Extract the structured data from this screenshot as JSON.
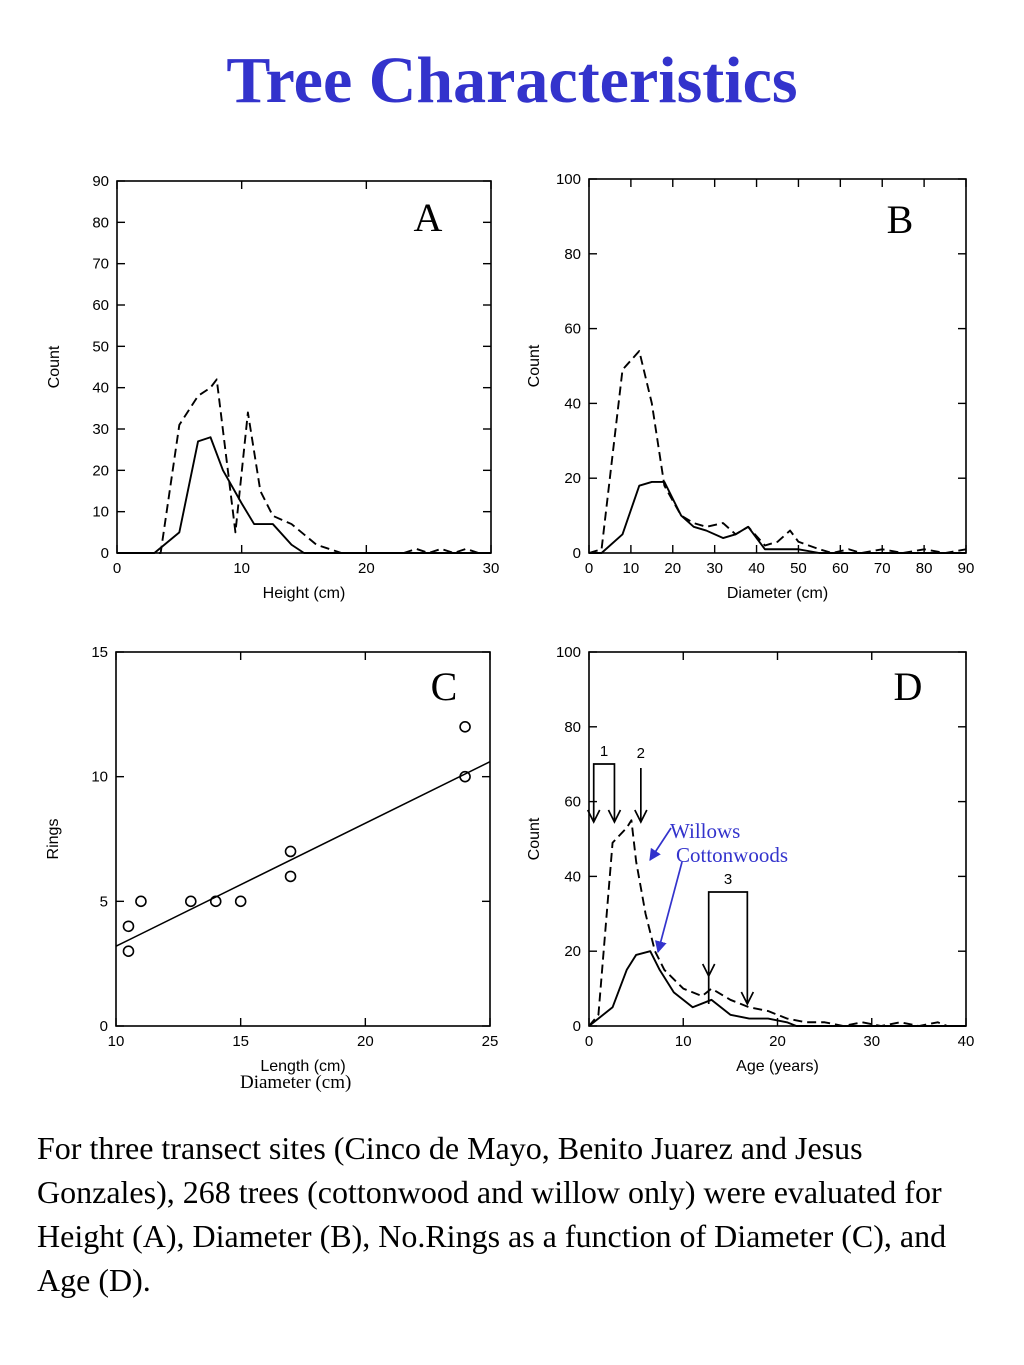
{
  "title": "Tree Characteristics",
  "caption": "For three transect sites (Cinco de Mayo, Benito Juarez and Jesus Gonzales), 268 trees (cottonwood and willow only) were evaluated for Height (A), Diameter (B), No.Rings as a function of Diameter (C), and Age (D).",
  "overlay_diameter_label": "Diameter (cm)",
  "legend_willows": "Willows",
  "legend_cottonwoods": "Cottonwoods",
  "colors": {
    "title": "#3333cc",
    "annotation": "#3333cc",
    "ink": "#000000"
  },
  "chart_data": [
    {
      "id": "A",
      "letter": "A",
      "type": "line",
      "xlabel": "Height (cm)",
      "ylabel": "Count",
      "xlim": [
        0,
        30
      ],
      "ylim": [
        0,
        90
      ],
      "xticks": [
        0,
        10,
        20,
        30
      ],
      "yticks": [
        0,
        10,
        20,
        30,
        40,
        50,
        60,
        70,
        80,
        90
      ],
      "series": [
        {
          "style": "dashed",
          "x": [
            0,
            3.5,
            5,
            6.5,
            7.5,
            8,
            9.5,
            10.5,
            11.5,
            12.5,
            14,
            16,
            18,
            22,
            23,
            24,
            25,
            26,
            27,
            28,
            29
          ],
          "y": [
            0,
            0,
            31,
            38,
            40,
            42,
            5,
            34,
            15,
            9,
            7,
            2,
            0,
            0,
            0,
            1,
            0,
            1,
            0,
            1,
            0
          ]
        },
        {
          "style": "solid",
          "x": [
            0,
            3,
            5,
            6.5,
            7.5,
            8.5,
            10,
            11,
            12.5,
            14,
            15,
            18,
            30
          ],
          "y": [
            0,
            0,
            5,
            27,
            28,
            20,
            12,
            7,
            7,
            2,
            0,
            0,
            0
          ]
        }
      ]
    },
    {
      "id": "B",
      "letter": "B",
      "type": "line",
      "xlabel": "Diameter (cm)",
      "ylabel": "Count",
      "xlim": [
        0,
        90
      ],
      "ylim": [
        0,
        100
      ],
      "xticks": [
        0,
        10,
        20,
        30,
        40,
        50,
        60,
        70,
        80,
        90
      ],
      "yticks": [
        0,
        20,
        40,
        60,
        80,
        100
      ],
      "series": [
        {
          "style": "dashed",
          "x": [
            0,
            3,
            8,
            12,
            15,
            18,
            22,
            25,
            28,
            32,
            35,
            38,
            42,
            45,
            48,
            50,
            55,
            58,
            62,
            65,
            70,
            75,
            80,
            85,
            90
          ],
          "y": [
            0,
            1,
            49,
            54,
            40,
            18,
            10,
            8,
            7,
            8,
            5,
            7,
            2,
            3,
            6,
            3,
            1,
            0,
            1,
            0,
            1,
            0,
            1,
            0,
            1
          ]
        },
        {
          "style": "solid",
          "x": [
            0,
            3,
            8,
            12,
            15,
            18,
            22,
            25,
            28,
            32,
            35,
            38,
            42,
            45,
            50,
            55,
            58,
            90
          ],
          "y": [
            0,
            0,
            5,
            18,
            19,
            19,
            10,
            7,
            6,
            4,
            5,
            7,
            1,
            1,
            1,
            0,
            0,
            0
          ]
        }
      ]
    },
    {
      "id": "C",
      "letter": "C",
      "type": "scatter",
      "xlabel": "Length (cm)",
      "ylabel": "Rings",
      "xlim": [
        10,
        25
      ],
      "ylim": [
        0,
        15
      ],
      "xticks": [
        10,
        15,
        20,
        25
      ],
      "yticks": [
        0,
        5,
        10,
        15
      ],
      "points": {
        "x": [
          10.5,
          10.5,
          11,
          13,
          14,
          15,
          17,
          17,
          24,
          24
        ],
        "y": [
          4,
          3,
          5,
          5,
          5,
          5,
          7,
          6,
          12,
          10
        ]
      },
      "fit_line": {
        "x": [
          10,
          25
        ],
        "y": [
          3.2,
          10.6
        ]
      }
    },
    {
      "id": "D",
      "letter": "D",
      "type": "line",
      "xlabel": "Age (years)",
      "ylabel": "Count",
      "xlim": [
        0,
        40
      ],
      "ylim": [
        0,
        100
      ],
      "xticks": [
        0,
        10,
        20,
        30,
        40
      ],
      "yticks": [
        0,
        20,
        40,
        60,
        80,
        100
      ],
      "series": [
        {
          "style": "dashed",
          "name": "Willows",
          "x": [
            0,
            1,
            2.5,
            4,
            4.5,
            5,
            6,
            7,
            8,
            10,
            12,
            13,
            15,
            17,
            19,
            21,
            23,
            25,
            27,
            29,
            31,
            33,
            35,
            37,
            38,
            40
          ],
          "y": [
            0,
            3,
            49,
            53,
            55,
            44,
            30,
            20,
            15,
            10,
            8,
            10,
            7,
            5,
            4,
            2,
            1,
            1,
            0,
            1,
            0,
            1,
            0,
            1,
            0,
            0
          ]
        },
        {
          "style": "solid",
          "name": "Cottonwoods",
          "x": [
            0,
            2.5,
            4,
            5,
            6.5,
            7.5,
            9,
            11,
            13,
            15,
            17,
            19,
            21,
            22,
            40
          ],
          "y": [
            0,
            5,
            15,
            19,
            20,
            15,
            9,
            5,
            7,
            3,
            2,
            2,
            1,
            0,
            0
          ]
        }
      ],
      "annotations": [
        {
          "label": "1",
          "type": "bracket",
          "x1": 0.5,
          "x2": 2.7
        },
        {
          "label": "2",
          "type": "single",
          "x1": 5.5
        },
        {
          "label": "3",
          "type": "bracket",
          "x1": 12.7,
          "x2": 16.8
        }
      ]
    }
  ]
}
